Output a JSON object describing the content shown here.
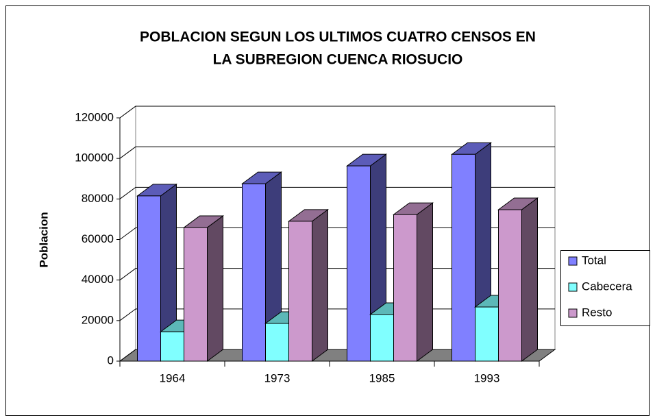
{
  "chart_data": {
    "type": "bar3d",
    "title": [
      "POBLACION SEGUN LOS ULTIMOS CUATRO CENSOS EN",
      "LA SUBREGION CUENCA RIOSUCIO"
    ],
    "y_label": "Poblacion",
    "categories": [
      "1964",
      "1973",
      "1985",
      "1993"
    ],
    "series": [
      {
        "name": "Total",
        "color": "#8080ff",
        "values": [
          81500,
          87500,
          96300,
          102000
        ]
      },
      {
        "name": "Cabecera",
        "color": "#80ffff",
        "values": [
          14500,
          18600,
          23000,
          26700
        ]
      },
      {
        "name": "Resto",
        "color": "#cc99cc",
        "values": [
          65900,
          69000,
          72300,
          74700
        ]
      }
    ],
    "ylim": [
      0,
      120000
    ],
    "yticks": [
      0,
      20000,
      40000,
      60000,
      80000,
      100000,
      120000
    ],
    "grid": true,
    "legend": "right"
  }
}
